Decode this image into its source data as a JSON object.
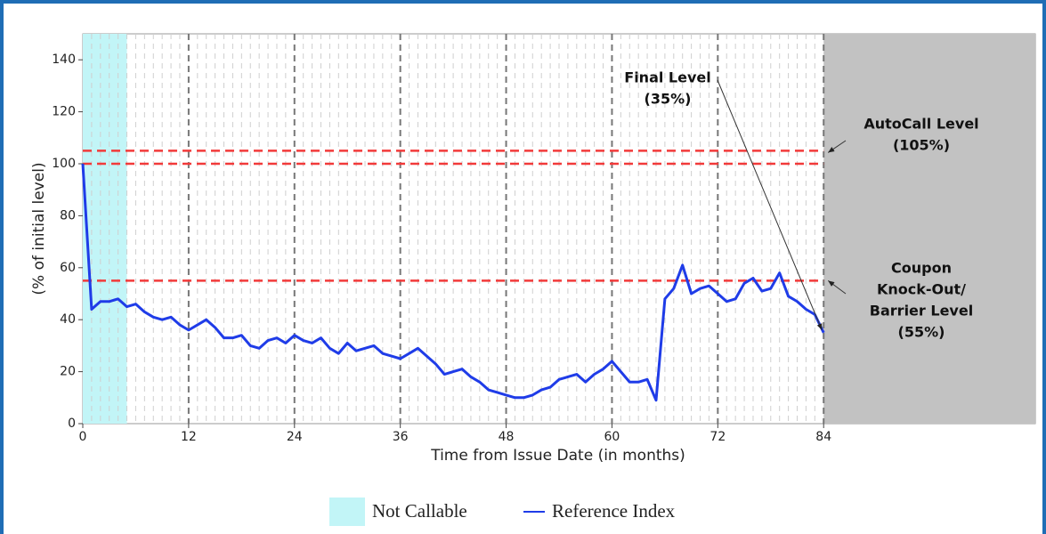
{
  "chart_data": {
    "type": "line",
    "x_label": "Time from Issue Date (in months)",
    "y_label": "(% of initial level)",
    "xlim": [
      0,
      108
    ],
    "ylim": [
      0,
      150
    ],
    "xticks": [
      0,
      12,
      24,
      36,
      48,
      60,
      72,
      84
    ],
    "yticks": [
      0,
      20,
      40,
      60,
      80,
      100,
      120,
      140
    ],
    "xminorticks": [
      1,
      2,
      3,
      4,
      5,
      6,
      7,
      8,
      9,
      10,
      11,
      13,
      14,
      15,
      16,
      17,
      18,
      19,
      20,
      21,
      22,
      23,
      25,
      26,
      27,
      28,
      29,
      30,
      31,
      32,
      33,
      34,
      35,
      37,
      38,
      39,
      40,
      41,
      42,
      43,
      44,
      45,
      46,
      47,
      49,
      50,
      51,
      52,
      53,
      54,
      55,
      56,
      57,
      58,
      59,
      61,
      62,
      63,
      64,
      65,
      66,
      67,
      68,
      69,
      70,
      71,
      73,
      74,
      75,
      76,
      77,
      78,
      79,
      80,
      81,
      82,
      83
    ],
    "regions": [
      {
        "name": "Not Callable",
        "from": 0,
        "to": 5,
        "color": "#c2f5f7"
      },
      {
        "from": 84,
        "to": 108,
        "color": "#c2c2c2"
      }
    ],
    "reference_lines": [
      {
        "value": 105,
        "color": "#f23a3a"
      },
      {
        "value": 100,
        "color": "#f23a3a"
      },
      {
        "value": 55,
        "color": "#f23a3a"
      }
    ],
    "series": [
      {
        "name": "Reference Index",
        "color": "#1f3ce8",
        "x": [
          0,
          1,
          2,
          3,
          4,
          5,
          6,
          7,
          8,
          9,
          10,
          11,
          12,
          13,
          14,
          15,
          16,
          17,
          18,
          19,
          20,
          21,
          22,
          23,
          24,
          25,
          26,
          27,
          28,
          29,
          30,
          31,
          32,
          33,
          34,
          35,
          36,
          37,
          38,
          39,
          40,
          41,
          42,
          43,
          44,
          45,
          46,
          47,
          48,
          49,
          50,
          51,
          52,
          53,
          54,
          55,
          56,
          57,
          58,
          59,
          60,
          61,
          62,
          63,
          64,
          65,
          66,
          67,
          68,
          69,
          70,
          71,
          72,
          73,
          74,
          75,
          76,
          77,
          78,
          79,
          80,
          81,
          82,
          83,
          84
        ],
        "values": [
          100,
          44,
          47,
          47,
          48,
          45,
          46,
          43,
          41,
          40,
          41,
          38,
          36,
          38,
          40,
          37,
          33,
          33,
          34,
          30,
          29,
          32,
          33,
          31,
          34,
          32,
          31,
          33,
          29,
          27,
          31,
          28,
          29,
          30,
          27,
          26,
          25,
          27,
          29,
          26,
          23,
          19,
          20,
          21,
          18,
          16,
          13,
          12,
          11,
          10,
          10,
          11,
          13,
          14,
          17,
          18,
          19,
          16,
          19,
          21,
          24,
          20,
          16,
          16,
          17,
          9,
          48,
          52,
          61,
          50,
          52,
          53,
          50,
          47,
          48,
          54,
          56,
          51,
          52,
          58,
          49,
          47,
          44,
          42,
          35
        ]
      }
    ],
    "annotations": [
      {
        "lines": [
          "Final Level",
          "(35%)"
        ]
      },
      {
        "lines": [
          "AutoCall Level",
          "(105%)"
        ]
      },
      {
        "lines": [
          "Coupon",
          "Knock-Out/",
          "Barrier Level",
          "(55%)"
        ]
      }
    ]
  }
}
